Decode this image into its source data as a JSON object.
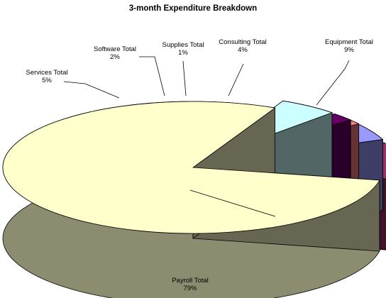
{
  "chart_data": {
    "type": "pie",
    "style": "3d-exploded",
    "title": "3-month Expenditure Breakdown",
    "slices": [
      {
        "name": "Payroll Total",
        "percent_label": "79%",
        "value": 79,
        "color": "#FFFFCC"
      },
      {
        "name": "Services Total",
        "percent_label": "5%",
        "value": 5,
        "color": "#CCFFFF"
      },
      {
        "name": "Software Total",
        "percent_label": "2%",
        "value": 2,
        "color": "#660066"
      },
      {
        "name": "Supplies Total",
        "percent_label": "1%",
        "value": 1,
        "color": "#FF8080"
      },
      {
        "name": "Consulting Total",
        "percent_label": "4%",
        "value": 4,
        "color": "#9999FF"
      },
      {
        "name": "Equipment Total",
        "percent_label": "9%",
        "value": 9,
        "color": "#993366"
      }
    ]
  }
}
